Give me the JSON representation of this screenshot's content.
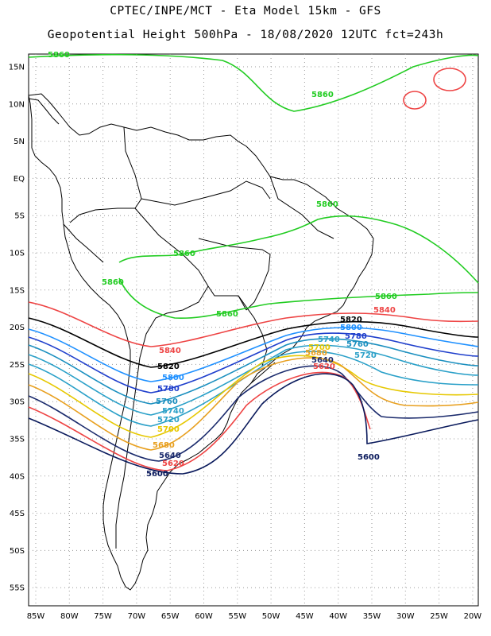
{
  "header": {
    "line1": "CPTEC/INPE/MCT -  Eta Model 15km - GFS",
    "line2": "Geopotential Height 500hPa - 18/08/2020 12UTC fct=243h"
  },
  "axes": {
    "lat_ticks": [
      "15N",
      "10N",
      "5N",
      "EQ",
      "5S",
      "10S",
      "15S",
      "20S",
      "25S",
      "30S",
      "35S",
      "40S",
      "45S",
      "50S",
      "55S"
    ],
    "lon_ticks": [
      "85W",
      "80W",
      "75W",
      "70W",
      "65W",
      "60W",
      "55W",
      "50W",
      "45W",
      "40W",
      "35W",
      "30W",
      "25W",
      "20W"
    ]
  },
  "contour_labels": [
    {
      "text": "5860",
      "color": "#22cc22"
    },
    {
      "text": "5860",
      "color": "#22cc22"
    },
    {
      "text": "5860",
      "color": "#22cc22"
    },
    {
      "text": "5860",
      "color": "#22cc22"
    },
    {
      "text": "5860",
      "color": "#22cc22"
    },
    {
      "text": "5860",
      "color": "#22cc22"
    },
    {
      "text": "5860",
      "color": "#22cc22"
    },
    {
      "text": "5840",
      "color": "#ee4444"
    },
    {
      "text": "5840",
      "color": "#ee4444"
    },
    {
      "text": "5820",
      "color": "#000000"
    },
    {
      "text": "5820",
      "color": "#000000"
    },
    {
      "text": "5800",
      "color": "#1e90ff"
    },
    {
      "text": "5800",
      "color": "#1e90ff"
    },
    {
      "text": "5780",
      "color": "#1f3fcc"
    },
    {
      "text": "5780",
      "color": "#1f3fcc"
    },
    {
      "text": "5760",
      "color": "#1a8fbf"
    },
    {
      "text": "5760",
      "color": "#1a8fbf"
    },
    {
      "text": "5740",
      "color": "#2aa0c8"
    },
    {
      "text": "5740",
      "color": "#2aa0c8"
    },
    {
      "text": "5720",
      "color": "#2aa0c8"
    },
    {
      "text": "5720",
      "color": "#2aa0c8"
    },
    {
      "text": "5700",
      "color": "#e6c800"
    },
    {
      "text": "5700",
      "color": "#e6c800"
    },
    {
      "text": "5680",
      "color": "#e8a020"
    },
    {
      "text": "5680",
      "color": "#e8a020"
    },
    {
      "text": "5640",
      "color": "#1a2a6c"
    },
    {
      "text": "5640",
      "color": "#1a2a6c"
    },
    {
      "text": "5620",
      "color": "#ee4444"
    },
    {
      "text": "5620",
      "color": "#ee4444"
    },
    {
      "text": "5600",
      "color": "#0a1a5c"
    },
    {
      "text": "5600",
      "color": "#0a1a5c"
    }
  ]
}
